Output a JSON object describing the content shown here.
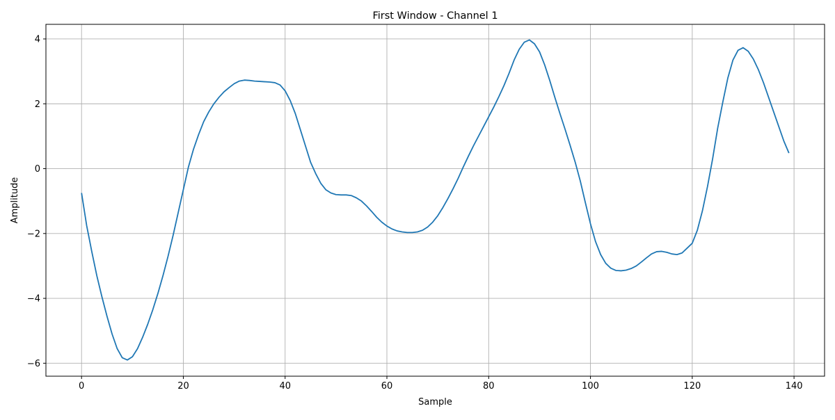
{
  "chart_data": {
    "type": "line",
    "title": "First Window - Channel 1",
    "xlabel": "Sample",
    "ylabel": "Amplitude",
    "xlim": [
      -7,
      146
    ],
    "ylim": [
      -6.4,
      4.45
    ],
    "xticks": [
      0,
      20,
      40,
      60,
      80,
      100,
      120,
      140
    ],
    "yticks": [
      -6,
      -4,
      -2,
      0,
      2,
      4
    ],
    "xtick_labels": [
      "0",
      "20",
      "40",
      "60",
      "80",
      "100",
      "120",
      "140"
    ],
    "ytick_labels": [
      "−6",
      "−4",
      "−2",
      "0",
      "2",
      "4"
    ],
    "grid": true,
    "line_color": "#1f77b4",
    "grid_color": "#b0b0b0",
    "series": [
      {
        "x": [
          0,
          1,
          2,
          3,
          4,
          5,
          6,
          7,
          8,
          9,
          10,
          11,
          12,
          13,
          14,
          15,
          16,
          17,
          18,
          19,
          20,
          21,
          22,
          23,
          24,
          25,
          26,
          27,
          28,
          29,
          30,
          31,
          32,
          33,
          34,
          35,
          36,
          37,
          38,
          39,
          40,
          41,
          42,
          43,
          44,
          45,
          46,
          47,
          48,
          49,
          50,
          51,
          52,
          53,
          54,
          55,
          56,
          57,
          58,
          59,
          60,
          61,
          62,
          63,
          64,
          65,
          66,
          67,
          68,
          69,
          70,
          71,
          72,
          73,
          74,
          75,
          76,
          77,
          78,
          79,
          80,
          81,
          82,
          83,
          84,
          85,
          86,
          87,
          88,
          89,
          90,
          91,
          92,
          93,
          94,
          95,
          96,
          97,
          98,
          99,
          100,
          101,
          102,
          103,
          104,
          105,
          106,
          107,
          108,
          109,
          110,
          111,
          112,
          113,
          114,
          115,
          116,
          117,
          118,
          119,
          120,
          121,
          122,
          123,
          124,
          125,
          126,
          127,
          128,
          129,
          130,
          131,
          132,
          133,
          134,
          135,
          136,
          137,
          138,
          139
        ],
        "values": [
          -0.75,
          -1.75,
          -2.55,
          -3.3,
          -3.95,
          -4.55,
          -5.1,
          -5.55,
          -5.83,
          -5.9,
          -5.8,
          -5.55,
          -5.2,
          -4.8,
          -4.35,
          -3.85,
          -3.3,
          -2.7,
          -2.05,
          -1.35,
          -0.65,
          0.05,
          0.6,
          1.05,
          1.45,
          1.75,
          2.0,
          2.2,
          2.37,
          2.5,
          2.62,
          2.7,
          2.73,
          2.72,
          2.7,
          2.69,
          2.68,
          2.67,
          2.65,
          2.58,
          2.4,
          2.1,
          1.7,
          1.2,
          0.7,
          0.2,
          -0.15,
          -0.45,
          -0.65,
          -0.75,
          -0.8,
          -0.81,
          -0.81,
          -0.83,
          -0.9,
          -1.0,
          -1.15,
          -1.32,
          -1.5,
          -1.65,
          -1.77,
          -1.86,
          -1.92,
          -1.95,
          -1.97,
          -1.97,
          -1.95,
          -1.9,
          -1.8,
          -1.65,
          -1.45,
          -1.2,
          -0.92,
          -0.62,
          -0.3,
          0.05,
          0.38,
          0.7,
          1.0,
          1.3,
          1.6,
          1.9,
          2.22,
          2.56,
          2.94,
          3.35,
          3.68,
          3.9,
          3.97,
          3.85,
          3.6,
          3.2,
          2.72,
          2.2,
          1.7,
          1.22,
          0.72,
          0.2,
          -0.38,
          -1.05,
          -1.7,
          -2.25,
          -2.65,
          -2.92,
          -3.07,
          -3.14,
          -3.15,
          -3.13,
          -3.08,
          -3.0,
          -2.88,
          -2.75,
          -2.63,
          -2.56,
          -2.55,
          -2.58,
          -2.63,
          -2.65,
          -2.6,
          -2.45,
          -2.3,
          -1.9,
          -1.3,
          -0.55,
          0.3,
          1.25,
          2.05,
          2.8,
          3.35,
          3.65,
          3.73,
          3.62,
          3.38,
          3.05,
          2.65,
          2.2,
          1.75,
          1.3,
          0.85,
          0.48
        ]
      }
    ]
  }
}
